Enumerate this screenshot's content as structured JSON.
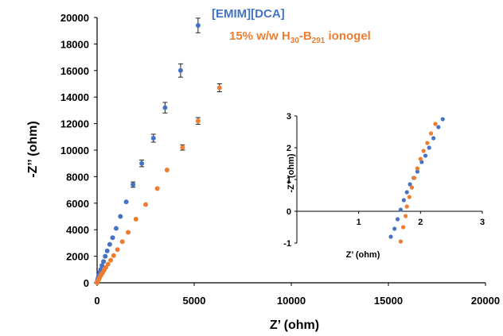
{
  "chart_data": [
    {
      "type": "scatter",
      "xlabel": "Z’ (ohm)",
      "ylabel": "-Z’’ (ohm)",
      "xlim": [
        0,
        20000
      ],
      "ylim": [
        0,
        20000
      ],
      "xticks": [
        "0",
        "5000",
        "10000",
        "15000",
        "20000"
      ],
      "yticks": [
        "0",
        "2000",
        "4000",
        "6000",
        "8000",
        "10000",
        "12000",
        "14000",
        "16000",
        "18000",
        "20000"
      ],
      "grid": false,
      "legend_position": "top-center",
      "series": [
        {
          "name": "[EMIM][DCA]",
          "color": "#4472C4",
          "x": [
            0,
            20,
            40,
            70,
            100,
            140,
            190,
            250,
            330,
            420,
            520,
            650,
            800,
            980,
            1200,
            1500,
            1850,
            2300,
            2900,
            3500,
            4300,
            5200
          ],
          "y": [
            0,
            150,
            300,
            450,
            600,
            800,
            1000,
            1300,
            1600,
            2000,
            2400,
            2900,
            3400,
            4100,
            5000,
            6100,
            7400,
            9000,
            10900,
            13200,
            16000,
            19400
          ],
          "error": [
            0,
            0,
            0,
            0,
            0,
            0,
            0,
            0,
            0,
            0,
            0,
            0,
            0,
            0,
            0,
            0,
            200,
            250,
            300,
            400,
            500,
            550
          ]
        },
        {
          "name": "15% w/w H30-B291 ionogel",
          "color": "#ED7D31",
          "x": [
            0,
            30,
            60,
            100,
            150,
            210,
            280,
            360,
            450,
            560,
            700,
            850,
            1050,
            1300,
            1600,
            2000,
            2500,
            3100,
            3600,
            4400,
            5200,
            6300
          ],
          "y": [
            0,
            100,
            200,
            300,
            450,
            600,
            750,
            950,
            1150,
            1400,
            1700,
            2050,
            2500,
            3100,
            3800,
            4800,
            5900,
            7100,
            8500,
            10200,
            12200,
            14700
          ],
          "error": [
            0,
            0,
            0,
            0,
            0,
            0,
            0,
            0,
            0,
            0,
            0,
            0,
            0,
            0,
            0,
            0,
            0,
            0,
            0,
            200,
            250,
            300
          ]
        }
      ],
      "legend": {
        "series1_label": "[EMIM][DCA]",
        "series2_main": "15% w/w H",
        "series2_sub1": "30",
        "series2_mid": "-B",
        "series2_sub2": "291",
        "series2_tail": " ionogel"
      }
    },
    {
      "type": "scatter",
      "role": "inset",
      "xlabel": "Z’ (ohm)",
      "ylabel": "-Z’’ (ohm)",
      "xlim": [
        0,
        3
      ],
      "ylim": [
        -1,
        3
      ],
      "xticks": [
        "1",
        "2",
        "3"
      ],
      "yticks": [
        "-1",
        "0",
        "1",
        "2",
        "3"
      ],
      "grid": false,
      "series": [
        {
          "name": "[EMIM][DCA]",
          "color": "#4472C4",
          "x": [
            1.52,
            1.58,
            1.63,
            1.68,
            1.73,
            1.78,
            1.83,
            1.89,
            1.95,
            2.02,
            2.08,
            2.14,
            2.21,
            2.29,
            2.36
          ],
          "y": [
            -0.8,
            -0.55,
            -0.25,
            0.05,
            0.35,
            0.6,
            0.85,
            1.05,
            1.25,
            1.55,
            1.75,
            2.0,
            2.3,
            2.65,
            2.9
          ]
        },
        {
          "name": "15% w/w H30-B291 ionogel",
          "color": "#ED7D31",
          "x": [
            1.68,
            1.72,
            1.76,
            1.78,
            1.82,
            1.86,
            1.9,
            1.95,
            2.0,
            2.05,
            2.11,
            2.17,
            2.24
          ],
          "y": [
            -0.95,
            -0.5,
            -0.15,
            0.15,
            0.45,
            0.75,
            1.05,
            1.35,
            1.65,
            1.9,
            2.15,
            2.45,
            2.75
          ]
        }
      ]
    }
  ]
}
